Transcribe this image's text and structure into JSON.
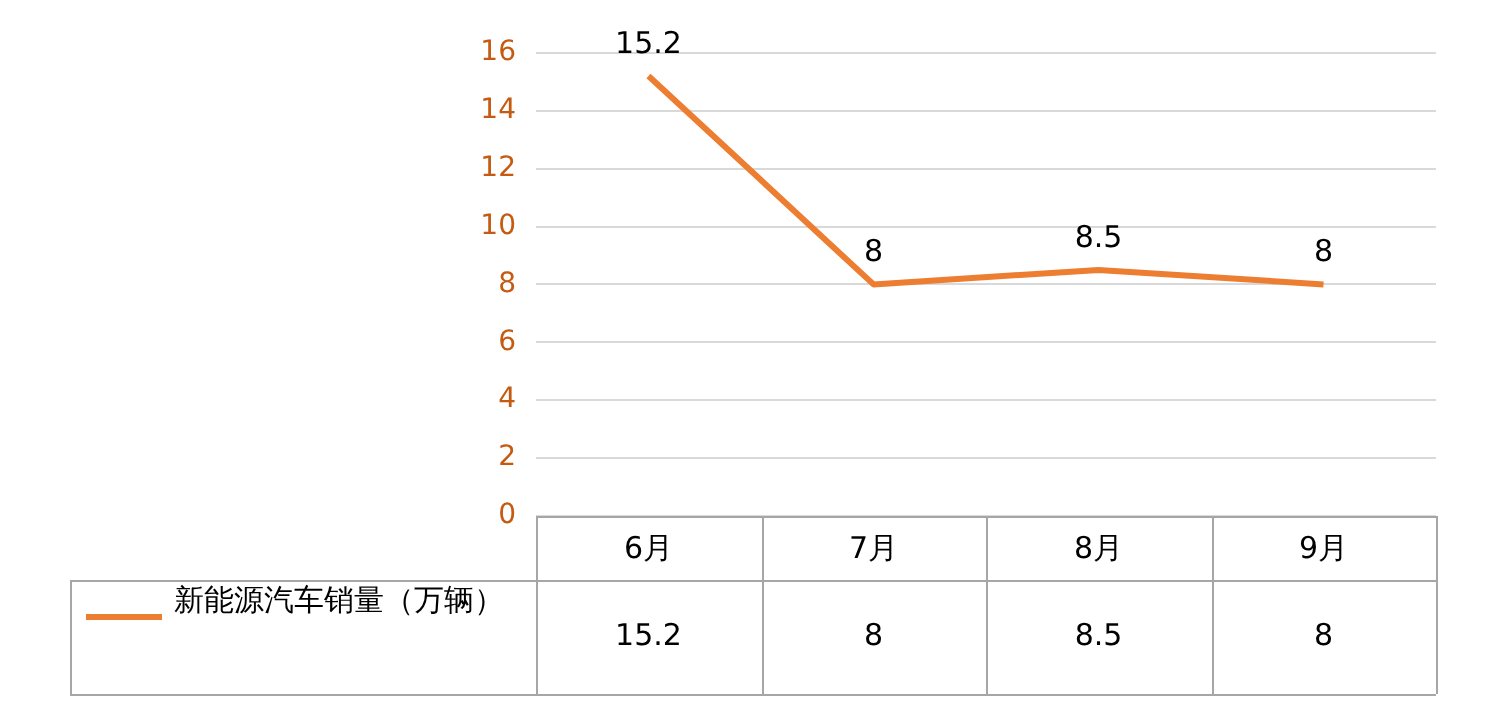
{
  "chart_data": {
    "type": "line",
    "categories": [
      "6月",
      "7月",
      "8月",
      "9月"
    ],
    "series": [
      {
        "name": "新能源汽车销量（万辆）",
        "color": "#ed7d31",
        "values": [
          15.2,
          8,
          8.5,
          8
        ]
      }
    ],
    "annotations": [
      {
        "text": "15.2",
        "x": "6月",
        "y": 15.2
      },
      {
        "text": "8",
        "x": "7月",
        "y": 8
      },
      {
        "text": "8.5",
        "x": "8月",
        "y": 8.5
      },
      {
        "text": "8",
        "x": "9月",
        "y": 8
      }
    ],
    "ylim": [
      0,
      16
    ],
    "yticks": [
      0,
      2,
      4,
      6,
      8,
      10,
      12,
      14,
      16
    ],
    "grid": "y",
    "legend": "bottom",
    "data_labels": true,
    "marker": "none",
    "line_style": "solid"
  }
}
